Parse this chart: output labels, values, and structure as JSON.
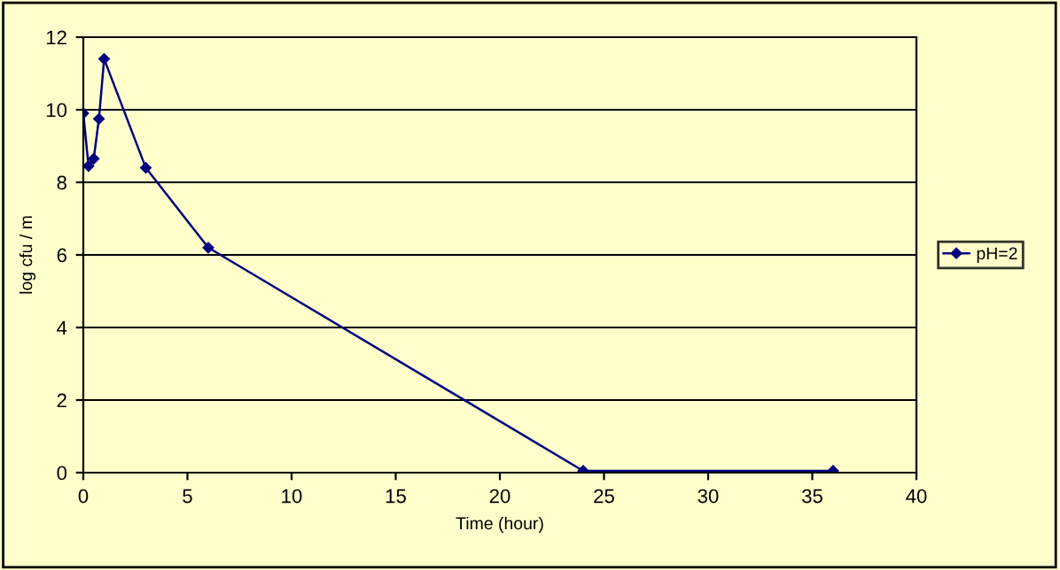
{
  "chart_data": {
    "type": "line",
    "xlabel": "Time (hour)",
    "ylabel": "log cfu / m",
    "series": [
      {
        "name": "pH=2",
        "color": "#000080",
        "x": [
          0,
          0.25,
          0.5,
          0.75,
          1,
          3,
          6,
          24,
          36
        ],
        "values": [
          9.9,
          8.45,
          8.65,
          9.75,
          11.4,
          8.4,
          6.2,
          0.05,
          0.05
        ]
      }
    ],
    "xlim": [
      0,
      40
    ],
    "xticks": [
      0,
      5,
      10,
      15,
      20,
      25,
      30,
      35,
      40
    ],
    "ylim": [
      0,
      12
    ],
    "yticks": [
      0,
      2,
      4,
      6,
      8,
      10,
      12
    ],
    "grid": "y",
    "legend": "right",
    "marker": "diamond",
    "line_style": "solid"
  }
}
